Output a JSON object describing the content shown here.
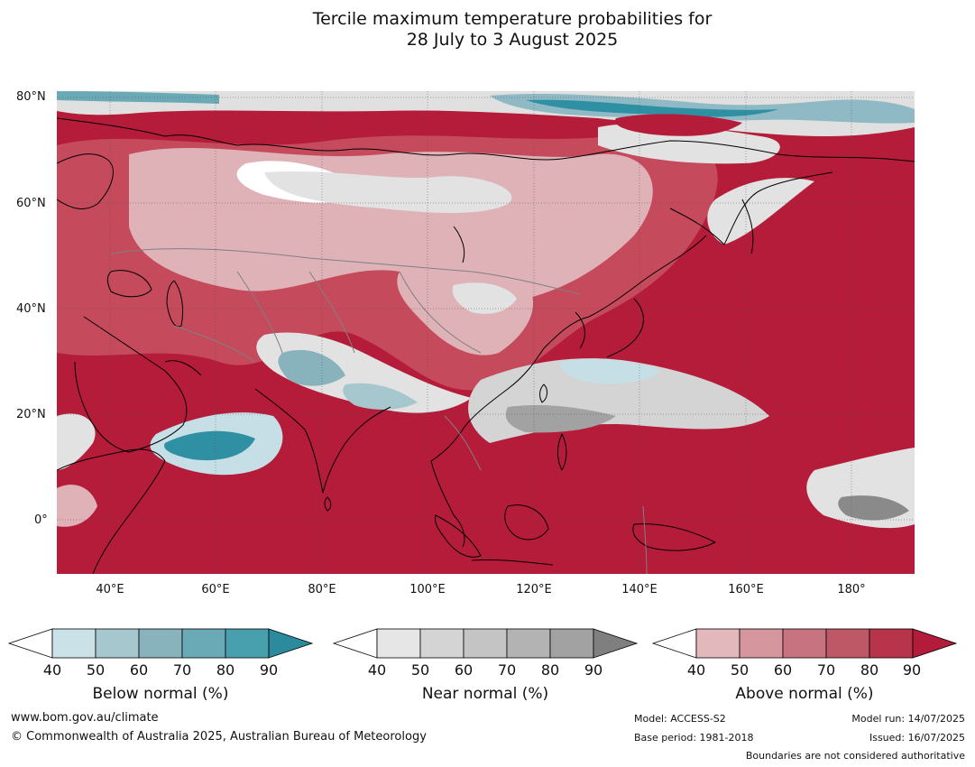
{
  "title": {
    "line1": "Tercile maximum temperature probabilities for",
    "line2": "28 July to 3 August 2025"
  },
  "map": {
    "lat_labels": [
      "80°N",
      "60°N",
      "40°N",
      "20°N",
      "0°"
    ],
    "lon_labels": [
      "40°E",
      "60°E",
      "80°E",
      "100°E",
      "120°E",
      "140°E",
      "160°E",
      "180°"
    ],
    "colors": {
      "above_dark": "#b41c3a",
      "above_mid": "#c44a5c",
      "above_light": "#dfb2b8",
      "near_light": "#e2e2e2",
      "near_mid": "#bdbdbd",
      "near_dark": "#8a8a8a",
      "below_light": "#c6dfe6",
      "below_dark": "#2f8fa3",
      "coast": "#000000",
      "border": "#808080"
    }
  },
  "legends": {
    "below": {
      "title": "Below normal (%)",
      "ticks": [
        "40",
        "50",
        "60",
        "70",
        "80",
        "90"
      ],
      "colors": [
        "#ffffff",
        "#c9e1e7",
        "#a6c7cd",
        "#88b2bc",
        "#6aaab6",
        "#48a0ae",
        "#2b8a9b"
      ]
    },
    "near": {
      "title": "Near normal (%)",
      "ticks": [
        "40",
        "50",
        "60",
        "70",
        "80",
        "90"
      ],
      "colors": [
        "#ffffff",
        "#e6e6e6",
        "#d4d4d4",
        "#c4c4c4",
        "#b3b3b3",
        "#a2a2a2",
        "#7f7f7f"
      ]
    },
    "above": {
      "title": "Above normal (%)",
      "ticks": [
        "40",
        "50",
        "60",
        "70",
        "80",
        "90"
      ],
      "colors": [
        "#ffffff",
        "#e3b8bd",
        "#d5969d",
        "#c87380",
        "#be5866",
        "#b8344b",
        "#b31b3b"
      ]
    }
  },
  "footer": {
    "url": "www.bom.gov.au/climate",
    "copyright": "© Commonwealth of Australia 2025, Australian Bureau of Meteorology",
    "model": "Model: ACCESS-S2",
    "base_period": "Base period: 1981-2018",
    "model_run": "Model run: 14/07/2025",
    "issued": "Issued: 16/07/2025",
    "disclaimer": "Boundaries are not considered authoritative"
  }
}
